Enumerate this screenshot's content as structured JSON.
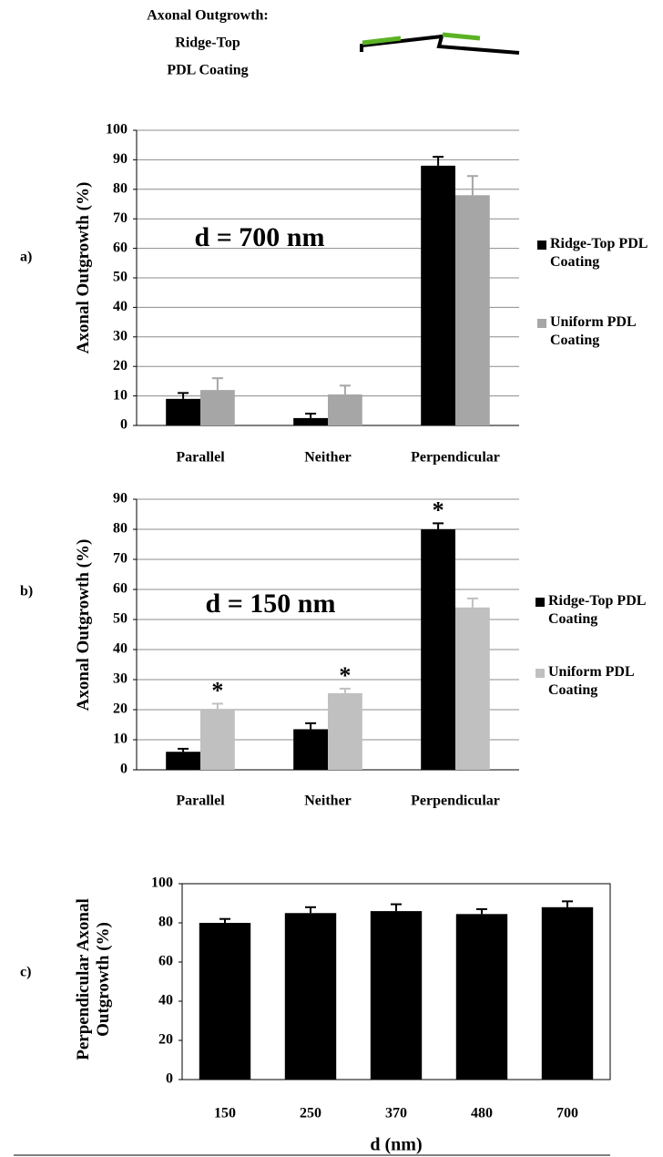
{
  "header": {
    "title": [
      "Axonal Outgrowth:",
      "Ridge-Top",
      "PDL Coating"
    ]
  },
  "panel_labels": [
    "a)",
    "b)",
    "c)"
  ],
  "chart_data": [
    {
      "type": "bar",
      "ylabel": "Axonal Outgrowth (%)",
      "annotation": "d = 700 nm",
      "categories": [
        "Parallel",
        "Neither",
        "Perpendicular"
      ],
      "series": [
        {
          "name": "Ridge-Top PDL Coating",
          "color": "#000000",
          "values": [
            9,
            2.5,
            88
          ],
          "errors": [
            2,
            1.5,
            3
          ]
        },
        {
          "name": "Uniform PDL Coating",
          "color": "#a6a6a6",
          "values": [
            12,
            10.5,
            78
          ],
          "errors": [
            4,
            3,
            6.5
          ]
        }
      ],
      "ylim": [
        0,
        100
      ],
      "yticks": [
        0,
        10,
        20,
        30,
        40,
        50,
        60,
        70,
        80,
        90,
        100
      ],
      "grid": true
    },
    {
      "type": "bar",
      "ylabel": "Axonal Outgrowth (%)",
      "annotation": "d = 150 nm",
      "categories": [
        "Parallel",
        "Neither",
        "Perpendicular"
      ],
      "series": [
        {
          "name": "Ridge-Top PDL Coating",
          "color": "#000000",
          "values": [
            6,
            13.5,
            80
          ],
          "errors": [
            1,
            2,
            2
          ]
        },
        {
          "name": "Uniform PDL Coating",
          "color": "#c0c0c0",
          "values": [
            20,
            25.5,
            54
          ],
          "errors": [
            2,
            1.5,
            3
          ]
        }
      ],
      "significance": [
        {
          "series": 1,
          "category": 0,
          "label": "*"
        },
        {
          "series": 1,
          "category": 1,
          "label": "*"
        },
        {
          "series": 0,
          "category": 2,
          "label": "*"
        }
      ],
      "ylim": [
        0,
        90
      ],
      "yticks": [
        0,
        10,
        20,
        30,
        40,
        50,
        60,
        70,
        80,
        90
      ],
      "grid": true
    },
    {
      "type": "bar",
      "ylabel": "Perpendicular Axonal Outgrowth (%)",
      "xlabel": "d (nm)",
      "categories": [
        "150",
        "250",
        "370",
        "480",
        "700"
      ],
      "series": [
        {
          "color": "#000000",
          "values": [
            80,
            85,
            86,
            84.5,
            88
          ],
          "errors": [
            2,
            3,
            3.5,
            2.5,
            3
          ]
        }
      ],
      "ylim": [
        0,
        100
      ],
      "yticks": [
        0,
        20,
        40,
        60,
        80,
        100
      ],
      "grid": false
    }
  ]
}
